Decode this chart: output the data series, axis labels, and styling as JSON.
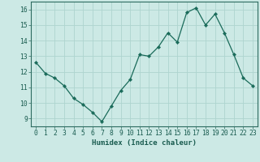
{
  "x": [
    0,
    1,
    2,
    3,
    4,
    5,
    6,
    7,
    8,
    9,
    10,
    11,
    12,
    13,
    14,
    15,
    16,
    17,
    18,
    19,
    20,
    21,
    22,
    23
  ],
  "y": [
    12.6,
    11.9,
    11.6,
    11.1,
    10.3,
    9.9,
    9.4,
    8.8,
    9.8,
    10.8,
    11.5,
    13.1,
    13.0,
    13.6,
    14.5,
    13.9,
    15.8,
    16.1,
    15.0,
    15.7,
    14.5,
    13.1,
    11.6,
    11.1
  ],
  "line_color": "#1a6b5a",
  "marker": "D",
  "marker_size": 2.2,
  "bg_color": "#cce9e5",
  "grid_color": "#aed4cf",
  "axis_color": "#2d6b60",
  "xlabel": "Humidex (Indice chaleur)",
  "ylim": [
    8.5,
    16.5
  ],
  "xlim": [
    -0.5,
    23.5
  ],
  "yticks": [
    9,
    10,
    11,
    12,
    13,
    14,
    15,
    16
  ],
  "xticks": [
    0,
    1,
    2,
    3,
    4,
    5,
    6,
    7,
    8,
    9,
    10,
    11,
    12,
    13,
    14,
    15,
    16,
    17,
    18,
    19,
    20,
    21,
    22,
    23
  ],
  "font_color": "#1a5c50",
  "label_fontsize": 6.5,
  "tick_fontsize": 5.8
}
